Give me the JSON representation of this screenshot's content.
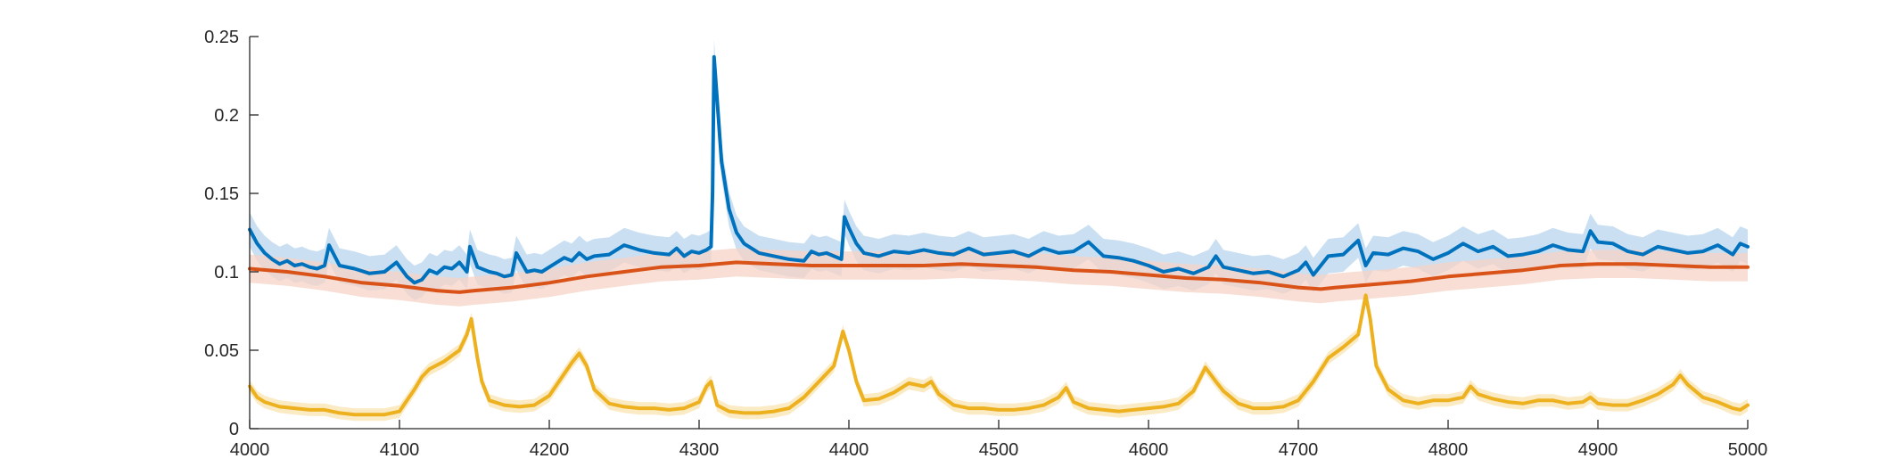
{
  "chart_data": {
    "type": "line",
    "title": "",
    "xlabel": "",
    "ylabel": "",
    "xlim": [
      4000,
      5000
    ],
    "ylim": [
      0,
      0.25
    ],
    "xticks": [
      4000,
      4100,
      4200,
      4300,
      4400,
      4500,
      4600,
      4700,
      4800,
      4900,
      5000
    ],
    "xtick_labels": [
      "4000",
      "4100",
      "4200",
      "4300",
      "4400",
      "4500",
      "4600",
      "4700",
      "4800",
      "4900",
      "5000"
    ],
    "yticks": [
      0,
      0.05,
      0.1,
      0.15,
      0.2,
      0.25
    ],
    "ytick_labels": [
      "0",
      "0.05",
      "0.1",
      "0.15",
      "0.2",
      "0.25"
    ],
    "grid": false,
    "legend": "none",
    "series": [
      {
        "color": "#0072BD",
        "band_color": "#b8d6ee",
        "band_halfwidth": 0.011,
        "x": [
          4000,
          4005,
          4010,
          4015,
          4020,
          4025,
          4030,
          4035,
          4040,
          4045,
          4050,
          4053,
          4060,
          4070,
          4080,
          4090,
          4098,
          4105,
          4110,
          4115,
          4120,
          4125,
          4130,
          4135,
          4140,
          4145,
          4147,
          4152,
          4160,
          4165,
          4170,
          4175,
          4178,
          4185,
          4190,
          4195,
          4200,
          4210,
          4215,
          4220,
          4225,
          4230,
          4240,
          4250,
          4260,
          4270,
          4280,
          4285,
          4290,
          4295,
          4300,
          4305,
          4308,
          4309,
          4310,
          4312,
          4315,
          4320,
          4325,
          4330,
          4340,
          4350,
          4360,
          4370,
          4375,
          4380,
          4385,
          4390,
          4395,
          4397,
          4400,
          4405,
          4410,
          4420,
          4430,
          4440,
          4450,
          4460,
          4470,
          4480,
          4490,
          4500,
          4510,
          4520,
          4530,
          4540,
          4550,
          4560,
          4570,
          4580,
          4590,
          4600,
          4610,
          4620,
          4630,
          4640,
          4645,
          4650,
          4660,
          4670,
          4680,
          4690,
          4700,
          4705,
          4710,
          4720,
          4730,
          4740,
          4745,
          4750,
          4760,
          4770,
          4780,
          4790,
          4800,
          4810,
          4820,
          4830,
          4840,
          4850,
          4860,
          4870,
          4880,
          4890,
          4895,
          4900,
          4910,
          4920,
          4930,
          4940,
          4950,
          4960,
          4970,
          4980,
          4990,
          4995,
          5000
        ],
        "y": [
          0.127,
          0.118,
          0.112,
          0.108,
          0.105,
          0.107,
          0.104,
          0.105,
          0.103,
          0.102,
          0.104,
          0.117,
          0.104,
          0.102,
          0.099,
          0.1,
          0.106,
          0.097,
          0.093,
          0.095,
          0.101,
          0.099,
          0.103,
          0.102,
          0.106,
          0.1,
          0.116,
          0.103,
          0.1,
          0.099,
          0.097,
          0.098,
          0.112,
          0.1,
          0.101,
          0.1,
          0.103,
          0.109,
          0.107,
          0.112,
          0.108,
          0.11,
          0.111,
          0.117,
          0.114,
          0.112,
          0.111,
          0.115,
          0.11,
          0.113,
          0.112,
          0.114,
          0.116,
          0.15,
          0.237,
          0.21,
          0.17,
          0.14,
          0.125,
          0.118,
          0.112,
          0.11,
          0.108,
          0.107,
          0.113,
          0.111,
          0.112,
          0.11,
          0.108,
          0.135,
          0.128,
          0.118,
          0.112,
          0.11,
          0.113,
          0.112,
          0.114,
          0.112,
          0.111,
          0.115,
          0.111,
          0.112,
          0.113,
          0.11,
          0.115,
          0.112,
          0.113,
          0.119,
          0.11,
          0.109,
          0.107,
          0.104,
          0.1,
          0.102,
          0.099,
          0.103,
          0.11,
          0.103,
          0.101,
          0.099,
          0.1,
          0.097,
          0.101,
          0.106,
          0.098,
          0.11,
          0.111,
          0.12,
          0.104,
          0.112,
          0.111,
          0.115,
          0.113,
          0.108,
          0.112,
          0.118,
          0.113,
          0.116,
          0.11,
          0.111,
          0.113,
          0.117,
          0.114,
          0.113,
          0.126,
          0.119,
          0.118,
          0.113,
          0.111,
          0.116,
          0.114,
          0.112,
          0.113,
          0.117,
          0.111,
          0.118,
          0.116
        ]
      },
      {
        "color": "#D95319",
        "band_color": "#f6d3c5",
        "band_halfwidth": 0.009,
        "x": [
          4000,
          4025,
          4050,
          4075,
          4100,
          4125,
          4140,
          4150,
          4175,
          4200,
          4225,
          4250,
          4275,
          4300,
          4325,
          4350,
          4375,
          4400,
          4425,
          4450,
          4475,
          4500,
          4525,
          4550,
          4575,
          4600,
          4625,
          4650,
          4675,
          4700,
          4715,
          4725,
          4750,
          4775,
          4800,
          4825,
          4850,
          4875,
          4900,
          4925,
          4950,
          4975,
          5000
        ],
        "y": [
          0.102,
          0.1,
          0.097,
          0.093,
          0.091,
          0.088,
          0.087,
          0.088,
          0.09,
          0.093,
          0.097,
          0.1,
          0.103,
          0.104,
          0.106,
          0.105,
          0.104,
          0.104,
          0.104,
          0.104,
          0.105,
          0.104,
          0.103,
          0.101,
          0.1,
          0.098,
          0.096,
          0.095,
          0.093,
          0.09,
          0.089,
          0.09,
          0.092,
          0.094,
          0.097,
          0.099,
          0.101,
          0.104,
          0.105,
          0.105,
          0.104,
          0.103,
          0.103
        ]
      },
      {
        "color": "#EDB120",
        "band_color": "#f8e4b2",
        "band_halfwidth": 0.004,
        "x": [
          4000,
          4005,
          4010,
          4020,
          4030,
          4040,
          4050,
          4060,
          4070,
          4080,
          4090,
          4095,
          4100,
          4105,
          4110,
          4115,
          4120,
          4130,
          4140,
          4145,
          4148,
          4152,
          4155,
          4160,
          4170,
          4180,
          4190,
          4200,
          4210,
          4215,
          4220,
          4225,
          4230,
          4240,
          4250,
          4260,
          4270,
          4280,
          4290,
          4300,
          4305,
          4308,
          4312,
          4320,
          4330,
          4340,
          4350,
          4360,
          4370,
          4380,
          4390,
          4396,
          4400,
          4405,
          4410,
          4420,
          4430,
          4440,
          4450,
          4455,
          4460,
          4470,
          4480,
          4490,
          4500,
          4510,
          4520,
          4530,
          4540,
          4545,
          4550,
          4560,
          4570,
          4580,
          4590,
          4600,
          4610,
          4620,
          4630,
          4638,
          4645,
          4650,
          4660,
          4670,
          4680,
          4690,
          4700,
          4710,
          4720,
          4730,
          4740,
          4745,
          4748,
          4752,
          4760,
          4770,
          4780,
          4790,
          4800,
          4810,
          4815,
          4820,
          4830,
          4840,
          4850,
          4860,
          4870,
          4880,
          4890,
          4895,
          4900,
          4910,
          4920,
          4930,
          4940,
          4950,
          4955,
          4960,
          4970,
          4980,
          4990,
          4995,
          5000
        ],
        "y": [
          0.027,
          0.02,
          0.017,
          0.014,
          0.013,
          0.012,
          0.012,
          0.01,
          0.009,
          0.009,
          0.009,
          0.01,
          0.011,
          0.018,
          0.025,
          0.033,
          0.038,
          0.043,
          0.05,
          0.06,
          0.07,
          0.045,
          0.03,
          0.018,
          0.015,
          0.014,
          0.015,
          0.021,
          0.035,
          0.042,
          0.048,
          0.04,
          0.025,
          0.016,
          0.014,
          0.013,
          0.013,
          0.012,
          0.013,
          0.017,
          0.027,
          0.03,
          0.015,
          0.011,
          0.01,
          0.01,
          0.011,
          0.013,
          0.02,
          0.03,
          0.04,
          0.062,
          0.05,
          0.03,
          0.018,
          0.019,
          0.023,
          0.029,
          0.027,
          0.03,
          0.022,
          0.015,
          0.013,
          0.013,
          0.012,
          0.012,
          0.013,
          0.015,
          0.02,
          0.026,
          0.017,
          0.013,
          0.012,
          0.011,
          0.012,
          0.013,
          0.014,
          0.016,
          0.024,
          0.039,
          0.03,
          0.024,
          0.016,
          0.013,
          0.013,
          0.014,
          0.018,
          0.03,
          0.045,
          0.052,
          0.06,
          0.085,
          0.07,
          0.04,
          0.025,
          0.018,
          0.016,
          0.018,
          0.018,
          0.02,
          0.027,
          0.022,
          0.019,
          0.017,
          0.016,
          0.018,
          0.018,
          0.016,
          0.017,
          0.02,
          0.016,
          0.015,
          0.015,
          0.018,
          0.022,
          0.028,
          0.034,
          0.028,
          0.02,
          0.017,
          0.013,
          0.012,
          0.015
        ]
      }
    ]
  }
}
